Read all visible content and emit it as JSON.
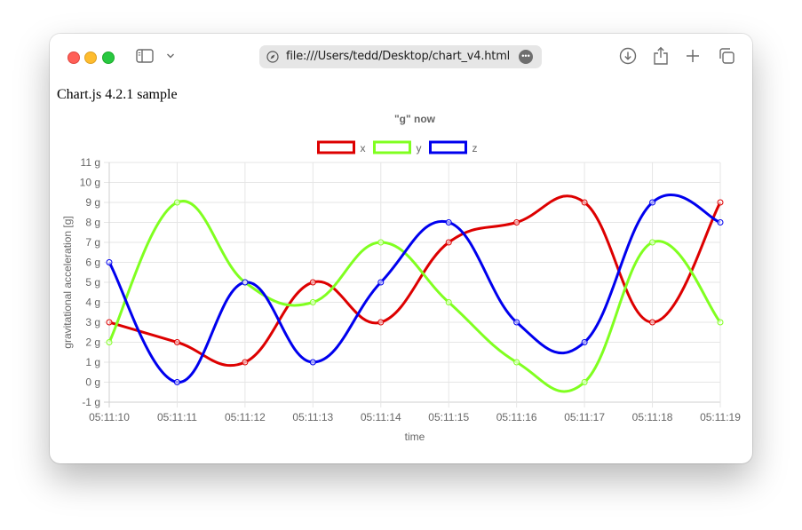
{
  "browser": {
    "url": "file:///Users/tedd/Desktop/chart_v4.html"
  },
  "page": {
    "heading": "Chart.js 4.2.1 sample"
  },
  "chart_data": {
    "type": "line",
    "title": "\"g\" now",
    "xlabel": "time",
    "ylabel": "gravitational acceleration [g]",
    "x": [
      "05:11:10",
      "05:11:11",
      "05:11:12",
      "05:11:13",
      "05:11:14",
      "05:11:15",
      "05:11:16",
      "05:11:17",
      "05:11:18",
      "05:11:19"
    ],
    "ylim": [
      -1,
      11
    ],
    "yticks": [
      "11 g",
      "10 g",
      "9 g",
      "8 g",
      "7 g",
      "6 g",
      "5 g",
      "4 g",
      "3 g",
      "2 g",
      "1 g",
      "0 g",
      "-1 g"
    ],
    "grid": true,
    "legend_position": "top",
    "series": [
      {
        "name": "x",
        "color": "#dd0000",
        "values": [
          3,
          2,
          1,
          5,
          3,
          7,
          8,
          9,
          3,
          9
        ]
      },
      {
        "name": "y",
        "color": "#80ff20",
        "values": [
          2,
          9,
          5,
          4,
          7,
          4,
          1,
          0,
          7,
          3
        ]
      },
      {
        "name": "z",
        "color": "#0000ee",
        "values": [
          6,
          0,
          5,
          1,
          5,
          8,
          3,
          2,
          9,
          8
        ]
      }
    ]
  }
}
